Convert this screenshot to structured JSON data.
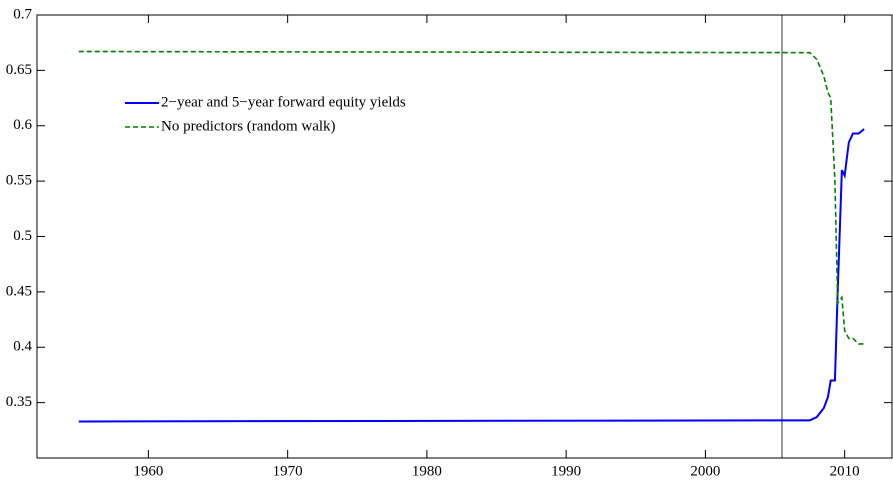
{
  "chart_data": {
    "type": "line",
    "x": [
      1955,
      2007.5,
      2008,
      2008.5,
      2008.8,
      2009,
      2009.3,
      2009.5,
      2009.8,
      2010,
      2010.3,
      2010.6,
      2011,
      2011.4
    ],
    "series": [
      {
        "name": "2−year and 5−year forward equity yields",
        "color": "#0000ff",
        "dash": false,
        "values": [
          0.333,
          0.334,
          0.337,
          0.345,
          0.355,
          0.37,
          0.37,
          0.45,
          0.56,
          0.555,
          0.585,
          0.593,
          0.593,
          0.597
        ]
      },
      {
        "name": "No predictors (random walk)",
        "color": "#008000",
        "dash": true,
        "values": [
          0.667,
          0.666,
          0.66,
          0.645,
          0.63,
          0.625,
          0.55,
          0.44,
          0.445,
          0.415,
          0.408,
          0.408,
          0.403,
          0.403
        ]
      }
    ],
    "vline_x": 2005.5,
    "xlim": [
      1952,
      2013.4
    ],
    "xticks": [
      1960,
      1970,
      1980,
      1990,
      2000,
      2010
    ],
    "ylim": [
      0.3,
      0.7
    ],
    "yticks": [
      0.35,
      0.4,
      0.45,
      0.5,
      0.55,
      0.6,
      0.65,
      0.7
    ],
    "legend": "upper-left"
  }
}
